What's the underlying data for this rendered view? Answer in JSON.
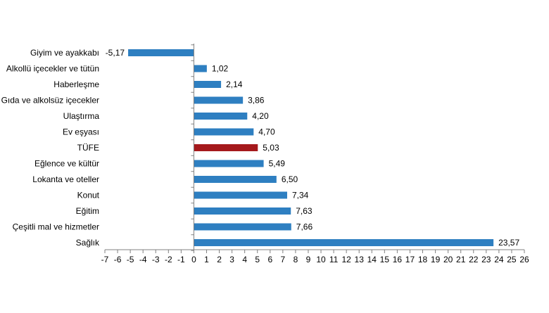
{
  "chart_data": {
    "type": "bar",
    "orientation": "horizontal",
    "categories": [
      "Giyim ve ayakkabı",
      "Alkollü içecekler ve tütün",
      "Haberleşme",
      "Gıda ve alkolsüz içecekler",
      "Ulaştırma",
      "Ev eşyası",
      "TÜFE",
      "Eğlence ve kültür",
      "Lokanta ve oteller",
      "Konut",
      "Eğitim",
      "Çeşitli mal ve hizmetler",
      "Sağlık"
    ],
    "values": [
      -5.17,
      1.02,
      2.14,
      3.86,
      4.2,
      4.7,
      5.03,
      5.49,
      6.5,
      7.34,
      7.63,
      7.66,
      23.57
    ],
    "value_labels": [
      "-5,17",
      "1,02",
      "2,14",
      "3,86",
      "4,20",
      "4,70",
      "5,03",
      "5,49",
      "6,50",
      "7,34",
      "7,63",
      "7,66",
      "23,57"
    ],
    "highlight_category": "TÜFE",
    "xlim": [
      -7,
      26
    ],
    "xticks": [
      -7,
      -6,
      -5,
      -4,
      -3,
      -2,
      -1,
      0,
      1,
      2,
      3,
      4,
      5,
      6,
      7,
      8,
      9,
      10,
      11,
      12,
      13,
      14,
      15,
      16,
      17,
      18,
      19,
      20,
      21,
      22,
      23,
      24,
      25,
      26
    ],
    "colors": {
      "bar": "#2e7fc1",
      "highlight": "#a5191c",
      "axis": "#808080"
    },
    "grid": false,
    "legend": "none",
    "title": "",
    "xlabel": "",
    "ylabel": ""
  }
}
